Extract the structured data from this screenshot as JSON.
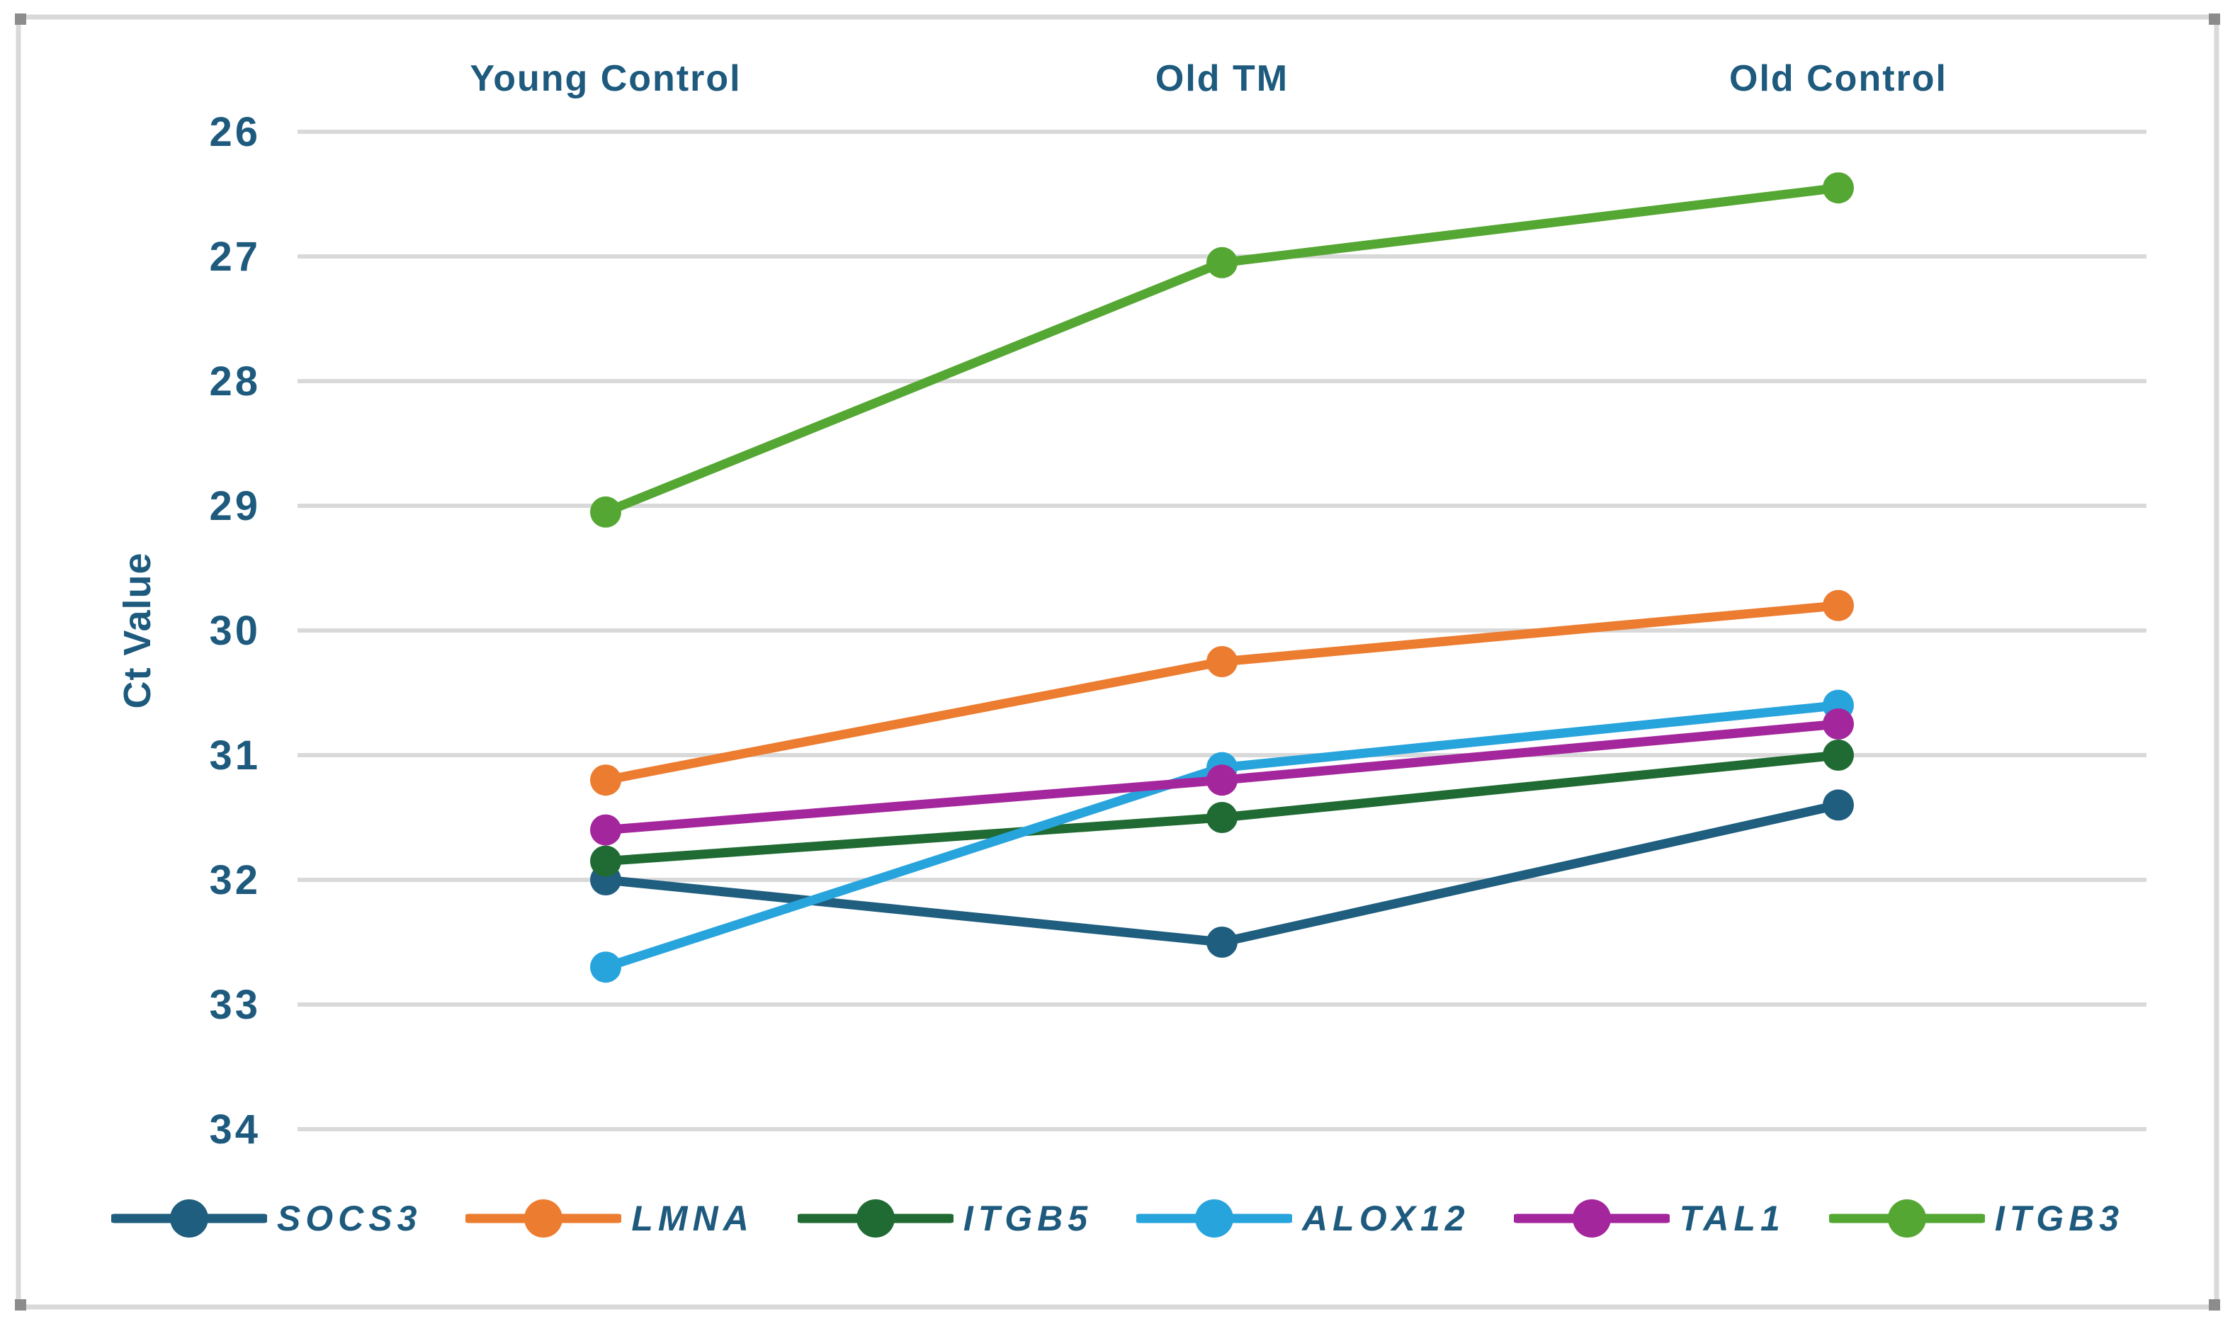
{
  "figure": {
    "background": "#FFFFFF",
    "border_color": "#D9D9D9",
    "corner_handle_color": "#8C8C8C"
  },
  "chart_data": {
    "type": "line",
    "title": "",
    "xlabel": "",
    "ylabel": "Ct Value",
    "categories": [
      "Young Control",
      "Old TM",
      "Old Control"
    ],
    "y_axis": {
      "ticks": [
        26,
        27,
        28,
        29,
        30,
        31,
        32,
        33,
        34
      ],
      "min": 26,
      "max": 34,
      "inverted": true
    },
    "grid": "horizontal",
    "gridline_color": "#D9D9D9",
    "text_color": "#1D5A7D",
    "legend_position": "bottom",
    "series": [
      {
        "name": "SOCS3",
        "color": "#1F5E7E",
        "values": [
          32.0,
          32.5,
          31.4
        ]
      },
      {
        "name": "LMNA",
        "color": "#EC7C30",
        "values": [
          31.2,
          30.25,
          29.8
        ]
      },
      {
        "name": "ITGB5",
        "color": "#206B33",
        "values": [
          31.85,
          31.5,
          31.0
        ]
      },
      {
        "name": "ALOX12",
        "color": "#28A4DC",
        "values": [
          32.7,
          31.1,
          30.6
        ]
      },
      {
        "name": "TAL1",
        "color": "#A4269C",
        "values": [
          31.6,
          31.2,
          30.75
        ]
      },
      {
        "name": "ITGB3",
        "color": "#55A733",
        "values": [
          29.05,
          27.05,
          26.45
        ]
      }
    ]
  }
}
